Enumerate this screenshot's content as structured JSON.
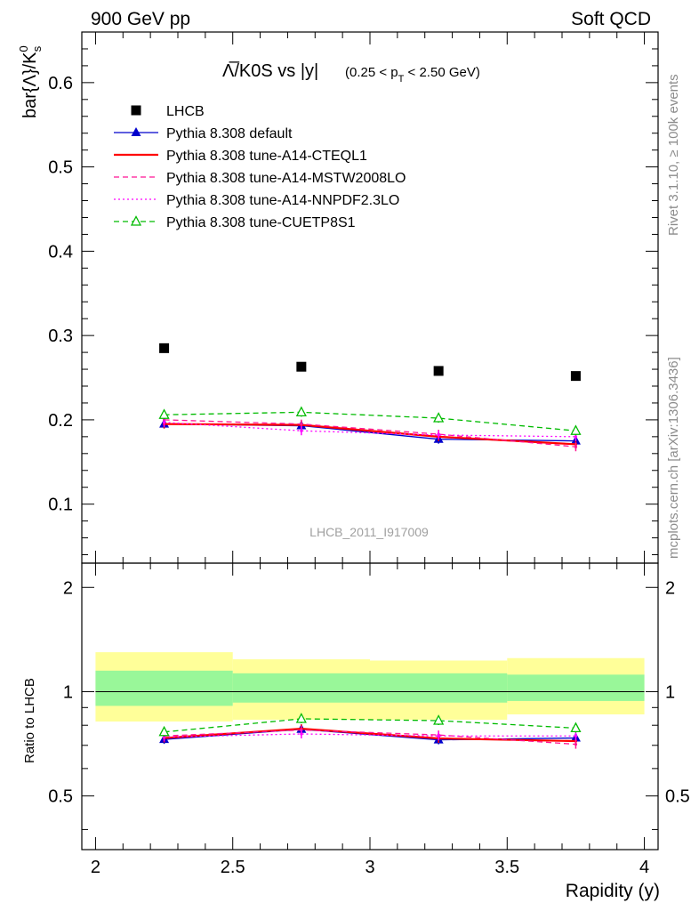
{
  "header": {
    "left": "900 GeV pp",
    "right": "Soft QCD"
  },
  "side_labels": {
    "rivet": "Rivet 3.1.10, ≥ 100k events",
    "mcplots": "mcplots.cern.ch [arXiv:1306.3436]"
  },
  "watermark": "LHCB_2011_I917009",
  "chart_data": [
    {
      "type": "line",
      "title_main": "Λ̅/K0S vs |y|",
      "title_cut_open": "(0.25 < p",
      "title_cut_sub": "T",
      "title_cut_close": " < 2.50 GeV)",
      "ylabel": "bar{Λ}/K",
      "ylabel_sup": "0",
      "ylabel_sub": "s",
      "xlim": [
        1.95,
        4.05
      ],
      "ylim": [
        0.03,
        0.66
      ],
      "yticks": [
        0.1,
        0.2,
        0.3,
        0.4,
        0.5,
        0.6
      ],
      "ytick_labels": [
        "0.1",
        "0.2",
        "0.3",
        "0.4",
        "0.5",
        "0.6"
      ],
      "legend_position": "top-left",
      "x": [
        2.25,
        2.75,
        3.25,
        3.75
      ],
      "series": [
        {
          "name": "LHCB",
          "values": [
            0.285,
            0.263,
            0.258,
            0.252
          ],
          "color": "#000000",
          "marker": "square",
          "line": "none"
        },
        {
          "name": "Pythia 8.308 default",
          "values": [
            0.195,
            0.193,
            0.177,
            0.175
          ],
          "color": "#0000cc",
          "marker": "triangle",
          "line": "solid"
        },
        {
          "name": "Pythia 8.308 tune-A14-CTEQL1",
          "values": [
            0.195,
            0.194,
            0.18,
            0.171
          ],
          "color": "#ff0000",
          "marker": "none",
          "line": "solid-thick"
        },
        {
          "name": "Pythia 8.308 tune-A14-MSTW2008LO",
          "values": [
            0.2,
            0.195,
            0.183,
            0.168
          ],
          "color": "#ff1493",
          "marker": "none",
          "line": "dashed"
        },
        {
          "name": "Pythia 8.308 tune-A14-NNPDF2.3LO",
          "values": [
            0.197,
            0.187,
            0.182,
            0.18
          ],
          "color": "#ff00ff",
          "marker": "none",
          "line": "dotted"
        },
        {
          "name": "Pythia 8.308 tune-CUETP8S1",
          "values": [
            0.206,
            0.209,
            0.202,
            0.187
          ],
          "color": "#00bb00",
          "marker": "open-triangle",
          "line": "dashed"
        }
      ]
    },
    {
      "type": "line",
      "ylabel": "Ratio to LHCB",
      "xlabel": "Rapidity (y)",
      "xlim": [
        1.95,
        4.05
      ],
      "ylim": [
        0.35,
        2.35
      ],
      "yticks": [
        0.5,
        1,
        2
      ],
      "ytick_labels": [
        "0.5",
        "1",
        "2"
      ],
      "xticks": [
        2,
        2.5,
        3,
        3.5,
        4
      ],
      "xtick_labels": [
        "2",
        "2.5",
        "3",
        "3.5",
        "4"
      ],
      "reference": 1,
      "bands": [
        {
          "x": [
            2.0,
            2.5
          ],
          "inner": [
            0.91,
            1.15
          ],
          "outer": [
            0.82,
            1.3
          ]
        },
        {
          "x": [
            2.5,
            3.0
          ],
          "inner": [
            0.93,
            1.13
          ],
          "outer": [
            0.83,
            1.24
          ]
        },
        {
          "x": [
            3.0,
            3.5
          ],
          "inner": [
            0.93,
            1.13
          ],
          "outer": [
            0.83,
            1.23
          ]
        },
        {
          "x": [
            3.5,
            4.0
          ],
          "inner": [
            0.94,
            1.12
          ],
          "outer": [
            0.86,
            1.25
          ]
        }
      ],
      "band_colors": {
        "inner": "#99f799",
        "outer": "#ffff99"
      },
      "x": [
        2.25,
        2.75,
        3.25,
        3.75
      ],
      "series": [
        {
          "name": "Pythia 8.308 default",
          "values": [
            0.728,
            0.779,
            0.726,
            0.735
          ],
          "color": "#0000cc"
        },
        {
          "name": "Pythia 8.308 tune-A14-CTEQL1",
          "values": [
            0.735,
            0.782,
            0.733,
            0.72
          ],
          "color": "#ff0000"
        },
        {
          "name": "Pythia 8.308 tune-A14-MSTW2008LO",
          "values": [
            0.745,
            0.775,
            0.75,
            0.705
          ],
          "color": "#ff1493"
        },
        {
          "name": "Pythia 8.308 tune-A14-NNPDF2.3LO",
          "values": [
            0.74,
            0.755,
            0.745,
            0.745
          ],
          "color": "#ff00ff"
        },
        {
          "name": "Pythia 8.308 tune-CUETP8S1",
          "values": [
            0.765,
            0.835,
            0.825,
            0.785
          ],
          "color": "#00bb00"
        }
      ]
    }
  ]
}
